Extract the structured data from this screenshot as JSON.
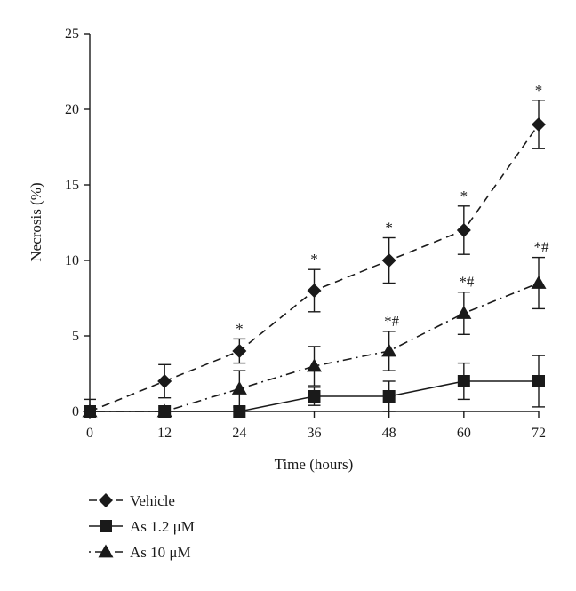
{
  "chart_data": {
    "type": "line",
    "xlabel": "Time (hours)",
    "ylabel": "Necrosis (%)",
    "x": [
      0,
      12,
      24,
      36,
      48,
      60,
      72
    ],
    "xlim": [
      0,
      72
    ],
    "ylim": [
      0,
      25
    ],
    "xticks": [
      "0",
      "12",
      "24",
      "36",
      "48",
      "60",
      "72"
    ],
    "yticks": [
      "0",
      "5",
      "10",
      "15",
      "20",
      "25"
    ],
    "grid": false,
    "legend_position": "bottom-left",
    "series": [
      {
        "name": "Vehicle",
        "marker": "diamond",
        "line_style": "dashed",
        "color": "#1a1a1a",
        "values": [
          0,
          2,
          4,
          8,
          10,
          12,
          19
        ],
        "errors": [
          0.8,
          1.1,
          0.8,
          1.4,
          1.5,
          1.6,
          1.6
        ],
        "annotations": [
          "",
          "",
          "*",
          "*",
          "*",
          "*",
          "*"
        ]
      },
      {
        "name": "As 1.2 μM",
        "marker": "square",
        "line_style": "solid",
        "color": "#1a1a1a",
        "values": [
          0,
          0,
          0,
          1,
          1,
          2,
          2
        ],
        "errors": [
          0,
          0,
          0,
          0.6,
          1.0,
          1.2,
          1.7
        ],
        "annotations": [
          "",
          "",
          "",
          "",
          "",
          "",
          ""
        ]
      },
      {
        "name": "As 10 μM",
        "marker": "triangle",
        "line_style": "dashdot",
        "color": "#1a1a1a",
        "values": [
          0,
          0,
          1.5,
          3,
          4,
          6.5,
          8.5
        ],
        "errors": [
          0,
          0,
          1.2,
          1.3,
          1.3,
          1.4,
          1.7
        ],
        "annotations": [
          "",
          "",
          "",
          "",
          "*#",
          "*#",
          "*#"
        ]
      }
    ]
  }
}
